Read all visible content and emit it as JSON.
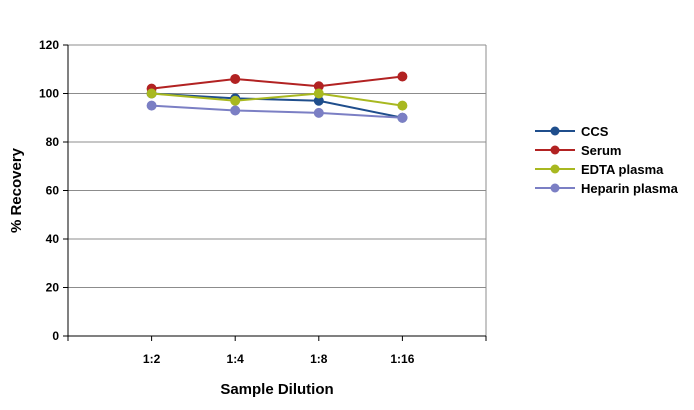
{
  "chart_data": {
    "type": "line",
    "categories": [
      "1:2",
      "1:4",
      "1:8",
      "1:16"
    ],
    "series": [
      {
        "name": "CCS",
        "color": "#1f4e8c",
        "values": [
          100,
          98,
          97,
          90
        ]
      },
      {
        "name": "Serum",
        "color": "#b22222",
        "values": [
          102,
          106,
          103,
          107
        ]
      },
      {
        "name": "EDTA plasma",
        "color": "#a8b820",
        "values": [
          100,
          97,
          100,
          95
        ]
      },
      {
        "name": "Heparin plasma",
        "color": "#7b7fc4",
        "values": [
          95,
          93,
          92,
          90
        ]
      }
    ],
    "xlabel": "Sample Dilution",
    "ylabel": "% Recovery",
    "ylim": [
      0,
      120
    ],
    "yticks": [
      0,
      20,
      40,
      60,
      80,
      100,
      120
    ],
    "grid": true,
    "legend_position": "right"
  }
}
